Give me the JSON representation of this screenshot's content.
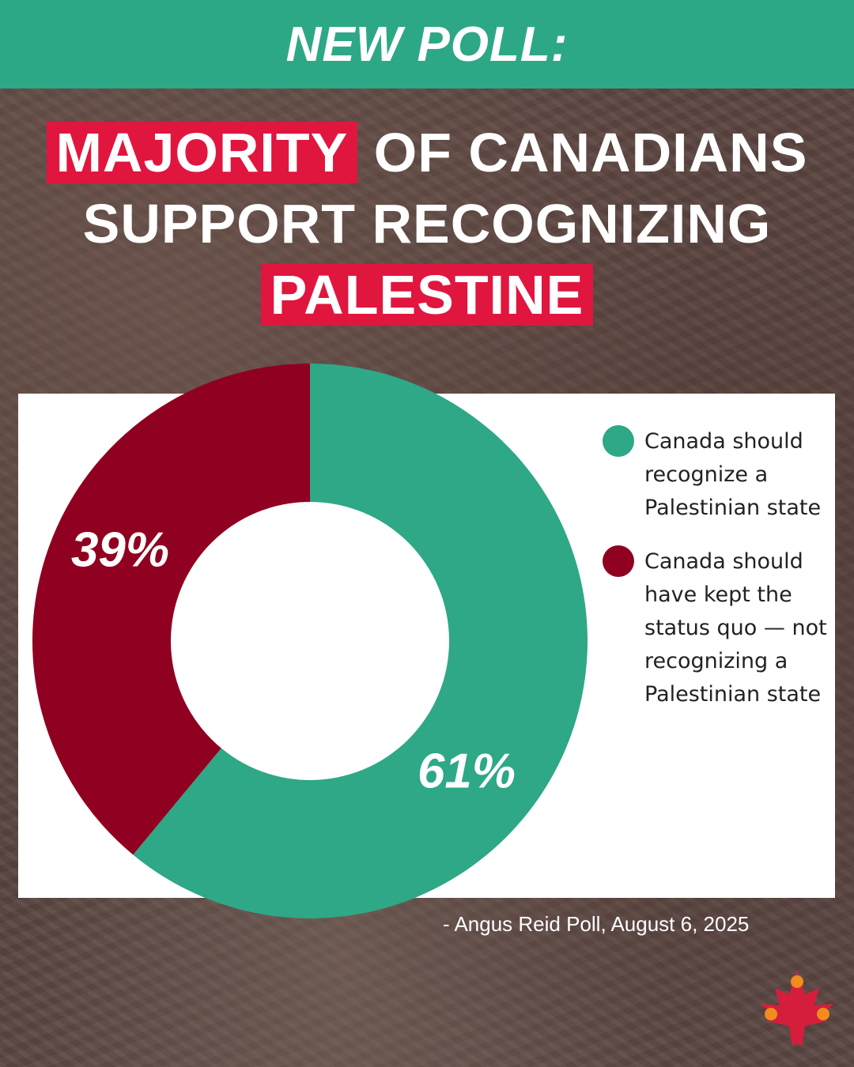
{
  "banner": {
    "text": "NEW POLL:",
    "color": "#2da886"
  },
  "headline": {
    "line1_highlight": "MAJORITY",
    "line1_rest": " OF CANADIANS",
    "line2": "SUPPORT RECOGNIZING",
    "line3_highlight": "PALESTINE",
    "highlight_color": "#e0163f"
  },
  "chart_data": {
    "type": "pie",
    "style": "donut",
    "series": [
      {
        "name": "Canada should recognize a Palestinian state",
        "value": 61,
        "label": "61%",
        "color": "#2ea887"
      },
      {
        "name": "Canada should have kept the status quo — not recognizing a Palestinian state",
        "value": 39,
        "label": "39%",
        "color": "#900020"
      }
    ],
    "legend_position": "right"
  },
  "source": "- Angus Reid Poll, August 6, 2025",
  "logo": {
    "icon": "maple-leaf-logo",
    "leaf_color": "#d51e3c",
    "figure_color": "#f28c1e"
  }
}
